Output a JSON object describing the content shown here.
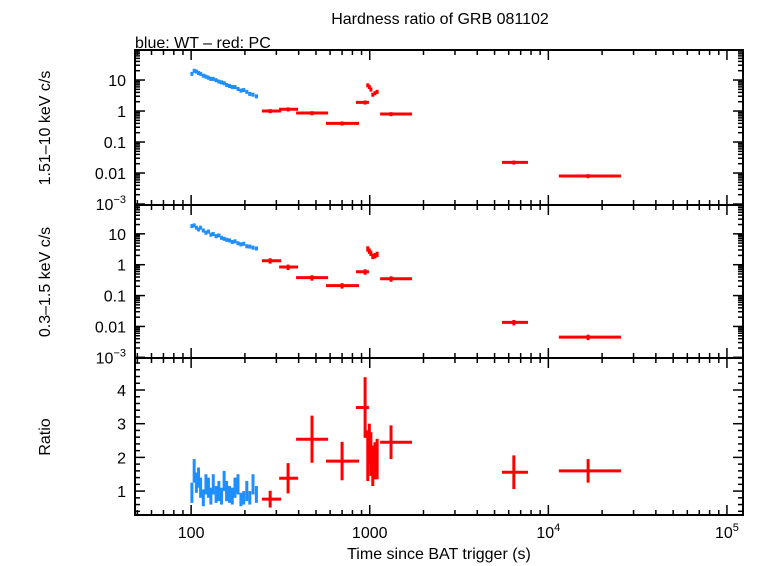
{
  "chart_data": [
    {
      "type": "scatter",
      "panel": "top",
      "title": "Hardness ratio of GRB 081102",
      "subtitle": "blue: WT – red: PC",
      "ylabel": "1.51–10 keV c/s",
      "xscale": "log",
      "yscale": "log",
      "xlim": [
        48.5,
        123000
      ],
      "ylim": [
        0.00093,
        93
      ],
      "yticks": [
        {
          "v": 10,
          "label": "10"
        },
        {
          "v": 1,
          "label": "1"
        },
        {
          "v": 0.1,
          "label": "0.1"
        },
        {
          "v": 0.01,
          "label": "0.01"
        },
        {
          "v": 0.001,
          "label": "10",
          "sup": "−3"
        }
      ],
      "series": [
        {
          "name": "WT",
          "color": "#1f8fff",
          "x": [
            101,
            104,
            107,
            110,
            113,
            117,
            121,
            125,
            129,
            133,
            138,
            143,
            148,
            153,
            158,
            164,
            170,
            176,
            183,
            190,
            197,
            205,
            213,
            222,
            232
          ],
          "y": [
            16,
            20,
            19,
            17,
            16,
            14,
            13,
            12,
            11,
            11,
            10,
            9,
            8.5,
            8,
            7,
            6.5,
            6,
            6,
            5.2,
            4.6,
            4.8,
            4.2,
            3.6,
            3.4,
            3.0
          ],
          "xerr_lo": [
            1.5,
            1.5,
            1.5,
            1.5,
            1.5,
            2,
            2,
            2,
            2,
            2,
            2.5,
            2.5,
            2.5,
            2.5,
            2.5,
            3,
            3,
            3,
            3,
            3,
            3.5,
            3.5,
            4,
            4,
            4.5
          ],
          "xerr_hi": [
            1.5,
            1.5,
            1.5,
            1.5,
            1.5,
            2,
            2,
            2,
            2,
            2,
            2.5,
            2.5,
            2.5,
            2.5,
            2.5,
            3,
            3,
            3,
            3,
            3,
            3.5,
            3.5,
            4,
            4,
            4.5
          ],
          "yerr_frac": 0.15
        },
        {
          "name": "PC",
          "color": "#ff0000",
          "x": [
            277,
            349,
            475,
            700,
            942,
            975,
            995,
            1015,
            1040,
            1070,
            1100,
            1316,
            6410,
            16700
          ],
          "y": [
            1.0,
            1.14,
            0.86,
            0.4,
            1.9,
            6.8,
            6.0,
            5.0,
            3.4,
            3.8,
            4.2,
            0.8,
            0.022,
            0.008
          ],
          "xerr_lo": [
            28,
            38,
            88,
            131,
            105,
            8,
            8,
            8,
            10,
            10,
            10,
            173,
            910,
            5250
          ],
          "xerr_hi": [
            42,
            48,
            110,
            171,
            48,
            8,
            8,
            8,
            10,
            10,
            10,
            410,
            1280,
            8800
          ],
          "yerr_frac": 0.15
        }
      ]
    },
    {
      "type": "scatter",
      "panel": "middle",
      "ylabel": "0.3–1.5 keV c/s",
      "xscale": "log",
      "yscale": "log",
      "xlim": [
        48.5,
        123000
      ],
      "ylim": [
        0.00095,
        86
      ],
      "yticks": [
        {
          "v": 10,
          "label": "10"
        },
        {
          "v": 1,
          "label": "1"
        },
        {
          "v": 0.1,
          "label": "0.1"
        },
        {
          "v": 0.01,
          "label": "0.01"
        },
        {
          "v": 0.001,
          "label": "10",
          "sup": "−3"
        }
      ],
      "series": [
        {
          "name": "WT",
          "color": "#1f8fff",
          "x": [
            101,
            104,
            107,
            110,
            113,
            117,
            121,
            125,
            129,
            133,
            138,
            143,
            148,
            153,
            158,
            164,
            170,
            176,
            183,
            190,
            197,
            205,
            213,
            222,
            232
          ],
          "y": [
            18,
            19,
            16,
            14,
            16,
            13,
            11,
            12,
            9.5,
            10,
            8.5,
            9,
            7.5,
            7,
            6.5,
            6.2,
            5.5,
            5.8,
            5,
            4.6,
            4.8,
            4,
            3.9,
            3.6,
            3.4
          ],
          "xerr_lo": [
            1.5,
            1.5,
            1.5,
            1.5,
            1.5,
            2,
            2,
            2,
            2,
            2,
            2.5,
            2.5,
            2.5,
            2.5,
            2.5,
            3,
            3,
            3,
            3,
            3,
            3.5,
            3.5,
            4,
            4,
            4.5
          ],
          "xerr_hi": [
            1.5,
            1.5,
            1.5,
            1.5,
            1.5,
            2,
            2,
            2,
            2,
            2,
            2.5,
            2.5,
            2.5,
            2.5,
            2.5,
            3,
            3,
            3,
            3,
            3,
            3.5,
            3.5,
            4,
            4,
            4.5
          ],
          "yerr_frac": 0.15
        },
        {
          "name": "PC",
          "color": "#ff0000",
          "x": [
            277,
            349,
            475,
            700,
            942,
            975,
            995,
            1015,
            1040,
            1070,
            1100,
            1316,
            6410,
            16700
          ],
          "y": [
            1.35,
            0.84,
            0.38,
            0.21,
            0.59,
            3.3,
            2.8,
            2.4,
            1.9,
            2.0,
            2.2,
            0.35,
            0.0135,
            0.0045
          ],
          "xerr_lo": [
            28,
            38,
            88,
            131,
            105,
            8,
            8,
            8,
            10,
            10,
            10,
            173,
            910,
            5250
          ],
          "xerr_hi": [
            42,
            48,
            110,
            171,
            48,
            8,
            8,
            8,
            10,
            10,
            10,
            410,
            1280,
            8800
          ],
          "yerr_frac": 0.2
        }
      ]
    },
    {
      "type": "scatter",
      "panel": "bottom",
      "ylabel": "Ratio",
      "xlabel": "Time since BAT trigger (s)",
      "xscale": "log",
      "yscale": "linear",
      "xlim": [
        48.5,
        123000
      ],
      "ylim": [
        0.29,
        4.95
      ],
      "xticks": [
        {
          "v": 100,
          "label": "100"
        },
        {
          "v": 1000,
          "label": "1000"
        },
        {
          "v": 10000,
          "label": "10",
          "sup": "4"
        },
        {
          "v": 100000,
          "label": "10",
          "sup": "5"
        }
      ],
      "yticks": [
        {
          "v": 1,
          "label": "1"
        },
        {
          "v": 2,
          "label": "2"
        },
        {
          "v": 3,
          "label": "3"
        },
        {
          "v": 4,
          "label": "4"
        }
      ],
      "series": [
        {
          "name": "WT",
          "color": "#1f8fff",
          "x": [
            101,
            104,
            107,
            110,
            113,
            117,
            121,
            125,
            129,
            133,
            138,
            143,
            148,
            153,
            158,
            164,
            170,
            176,
            183,
            190,
            197,
            205,
            213,
            222,
            232
          ],
          "y": [
            0.95,
            1.6,
            1.25,
            1.4,
            1.1,
            0.8,
            1.2,
            1.1,
            0.85,
            1.2,
            0.9,
            1.0,
            0.85,
            1.3,
            1.0,
            0.9,
            0.85,
            1.1,
            1.2,
            0.75,
            0.8,
            1.0,
            0.8,
            1.2,
            0.9
          ],
          "yerr": [
            0.3,
            0.35,
            0.3,
            0.3,
            0.3,
            0.25,
            0.3,
            0.3,
            0.25,
            0.3,
            0.25,
            0.3,
            0.25,
            0.3,
            0.3,
            0.25,
            0.25,
            0.3,
            0.3,
            0.2,
            0.2,
            0.3,
            0.2,
            0.3,
            0.25
          ],
          "xerr_lo": [
            1.5,
            1.5,
            1.5,
            1.5,
            1.5,
            2,
            2,
            2,
            2,
            2,
            2.5,
            2.5,
            2.5,
            2.5,
            2.5,
            3,
            3,
            3,
            3,
            3,
            3.5,
            3.5,
            4,
            4,
            4.5
          ],
          "xerr_hi": [
            1.5,
            1.5,
            1.5,
            1.5,
            1.5,
            2,
            2,
            2,
            2,
            2,
            2.5,
            2.5,
            2.5,
            2.5,
            2.5,
            3,
            3,
            3,
            3,
            3,
            3.5,
            3.5,
            4,
            4,
            4.5
          ]
        },
        {
          "name": "PC",
          "color": "#ff0000",
          "x": [
            277,
            349,
            475,
            700,
            942,
            975,
            995,
            1015,
            1040,
            1070,
            1100,
            1316,
            6410,
            16700
          ],
          "y": [
            0.76,
            1.38,
            2.54,
            1.89,
            3.48,
            2.05,
            2.4,
            2.1,
            1.75,
            1.9,
            1.95,
            2.45,
            1.56,
            1.6
          ],
          "yerr": [
            0.25,
            0.45,
            0.7,
            0.57,
            0.9,
            0.75,
            0.6,
            0.65,
            0.6,
            0.55,
            0.6,
            0.5,
            0.5,
            0.35
          ],
          "xerr_lo": [
            28,
            38,
            88,
            131,
            105,
            8,
            8,
            8,
            10,
            10,
            10,
            173,
            910,
            5250
          ],
          "xerr_hi": [
            42,
            48,
            110,
            171,
            48,
            8,
            8,
            8,
            10,
            10,
            10,
            410,
            1280,
            8800
          ]
        }
      ]
    }
  ]
}
